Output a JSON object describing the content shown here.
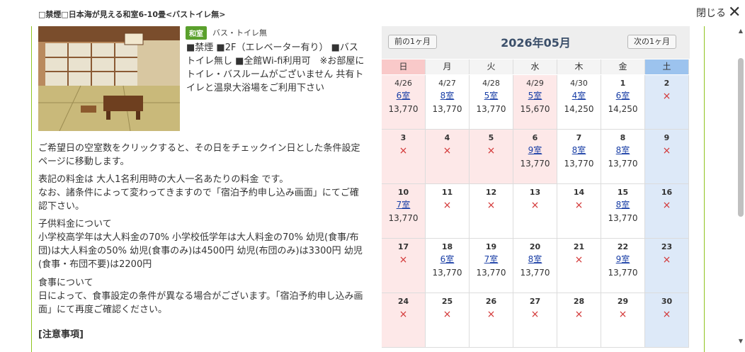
{
  "dialog": {
    "title": "□禁煙□日本海が見える和室6-10畳<バストイレ無>",
    "close_label": "閉じる"
  },
  "room": {
    "tag": "和室",
    "sub": "バス・トイレ無",
    "description": "■禁煙 ■2F（エレベーター有り） ■バストイレ無し ■全館Wi-fi利用可　※お部屋にトイレ・バスルームがございません 共有トイレと温泉大浴場をご利用下さい"
  },
  "info": {
    "p1": "ご希望日の空室数をクリックすると、その日をチェックイン日とした条件設定ページに移動します。",
    "p2": "表記の料金は 大人1名利用時の大人一名あたりの料金 です。\nなお、諸条件によって変わってきますので「宿泊予約申し込み画面」にてご確認下さい。",
    "p3": "子供料金について\n小学校高学年は大人料金の70% 小学校低学年は大人料金の70% 幼児(食事/布団)は大人料金の50% 幼児(食事のみ)は4500円 幼児(布団のみ)は3300円 幼児(食事・布団不要)は2200円",
    "p4": "食事について\n日によって、食事設定の条件が異なる場合がございます。「宿泊予約申し込み画面」にて再度ご確認ください。",
    "notes_title": "[注意事項]"
  },
  "calendar": {
    "prev_label": "前の1ヶ月",
    "next_label": "次の1ヶ月",
    "month_label": "2026年05月",
    "weekdays": [
      "日",
      "月",
      "火",
      "水",
      "木",
      "金",
      "土"
    ],
    "colors": {
      "sunday_bg": "#fde8e8",
      "saturday_bg": "#dde9f8",
      "sunday_header": "#f9c9c9",
      "saturday_header": "#9cc3ee",
      "link": "#1a3fa6",
      "cross": "#d23232"
    },
    "weeks": [
      [
        {
          "date": "4/26",
          "rooms": "6室",
          "price": "13,770"
        },
        {
          "date": "4/27",
          "rooms": "8室",
          "price": "13,770"
        },
        {
          "date": "4/28",
          "rooms": "5室",
          "price": "13,770"
        },
        {
          "date": "4/29",
          "rooms": "5室",
          "price": "15,670",
          "holiday": true
        },
        {
          "date": "4/30",
          "rooms": "4室",
          "price": "14,250"
        },
        {
          "date": "1",
          "rooms": "6室",
          "price": "14,250"
        },
        {
          "date": "2",
          "mark": "×"
        }
      ],
      [
        {
          "date": "3",
          "mark": "×"
        },
        {
          "date": "4",
          "mark": "×",
          "holiday": true
        },
        {
          "date": "5",
          "mark": "×",
          "holiday": true
        },
        {
          "date": "6",
          "rooms": "9室",
          "price": "13,770",
          "holiday": true
        },
        {
          "date": "7",
          "rooms": "8室",
          "price": "13,770"
        },
        {
          "date": "8",
          "rooms": "8室",
          "price": "13,770"
        },
        {
          "date": "9",
          "mark": "×"
        }
      ],
      [
        {
          "date": "10",
          "rooms": "7室",
          "price": "13,770"
        },
        {
          "date": "11",
          "mark": "×"
        },
        {
          "date": "12",
          "mark": "×"
        },
        {
          "date": "13",
          "mark": "×"
        },
        {
          "date": "14",
          "mark": "×"
        },
        {
          "date": "15",
          "rooms": "8室",
          "price": "13,770"
        },
        {
          "date": "16",
          "mark": "×"
        }
      ],
      [
        {
          "date": "17",
          "mark": "×"
        },
        {
          "date": "18",
          "rooms": "6室",
          "price": "13,770"
        },
        {
          "date": "19",
          "rooms": "7室",
          "price": "13,770"
        },
        {
          "date": "20",
          "rooms": "8室",
          "price": "13,770"
        },
        {
          "date": "21",
          "mark": "×"
        },
        {
          "date": "22",
          "rooms": "9室",
          "price": "13,770"
        },
        {
          "date": "23",
          "mark": "×"
        }
      ],
      [
        {
          "date": "24",
          "mark": "×"
        },
        {
          "date": "25",
          "mark": "×"
        },
        {
          "date": "26",
          "mark": "×"
        },
        {
          "date": "27",
          "mark": "×"
        },
        {
          "date": "28",
          "mark": "×"
        },
        {
          "date": "29",
          "mark": "×"
        },
        {
          "date": "30",
          "mark": "×"
        }
      ]
    ]
  }
}
